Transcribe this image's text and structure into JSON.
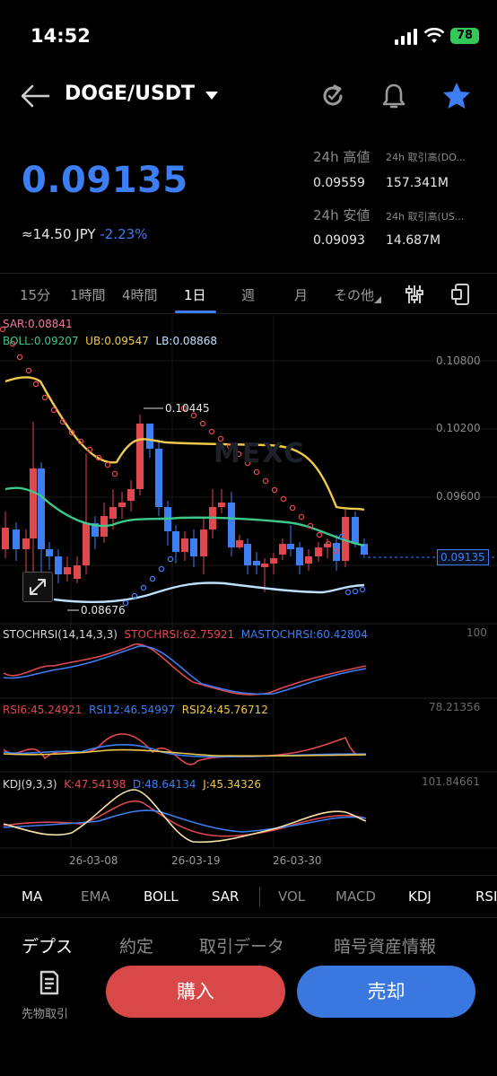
{
  "status_bar": {
    "time": "14:52",
    "battery": "78"
  },
  "header": {
    "pair": "DOGE/USDT"
  },
  "ticker": {
    "price": "0.09135",
    "approx_prefix": "≈14.50 JPY",
    "change": "-2.23%",
    "high_label": "24h 高値",
    "high_value": "0.09559",
    "vol_coin_label": "24h 取引高(DO...",
    "vol_coin_value": "157.341M",
    "low_label": "24h 安値",
    "low_value": "0.09093",
    "vol_usdt_label": "24h 取引高(US...",
    "vol_usdt_value": "14.687M"
  },
  "timeframes": [
    "15分",
    "1時間",
    "4時間",
    "1日",
    "週",
    "月",
    "その他"
  ],
  "timeframe_active": "1日",
  "chart_labels": {
    "sar": "SAR:0.08841",
    "boll": "BOLL:0.09207",
    "ub": "UB:0.09547",
    "lb": "LB:0.08868",
    "price_axis": [
      "0.10800",
      "0.10200",
      "0.09600"
    ],
    "current_price_tag": "0.09135",
    "high_marker": "0.10445",
    "low_marker": "0.08676",
    "stoch_title": "STOCHRSI(14,14,3,3)",
    "stoch_val": "STOCHRSI:62.75921",
    "mastoch_val": "MASTOCHRSI:60.42804",
    "stoch_axis": "100",
    "rsi6": "RSI6:45.24921",
    "rsi12": "RSI12:46.54997",
    "rsi24": "RSI24:45.76712",
    "rsi_axis": "78.21356",
    "kdj_title": "KDJ(9,3,3)",
    "kdj_k": "K:47.54198",
    "kdj_d": "D:48.64134",
    "kdj_j": "J:45.34326",
    "kdj_axis": "101.84661",
    "dates": [
      "26-03-08",
      "26-03-19",
      "26-03-30"
    ],
    "watermark": "MEXC"
  },
  "indicators": [
    "MA",
    "EMA",
    "BOLL",
    "SAR",
    "VOL",
    "MACD",
    "KDJ",
    "RSI"
  ],
  "bottom_tabs": [
    "デプス",
    "約定",
    "取引データ",
    "暗号資産情報"
  ],
  "actions": {
    "futures": "先物取引",
    "buy": "購入",
    "sell": "売却"
  },
  "colors": {
    "up": "#3d7ef2",
    "down": "#e0484f",
    "accent": "#3d7ef2",
    "boll_mid": "#3ec98a",
    "boll_upper": "#f0c94a",
    "boll_lower": "#bfe0ff",
    "sar": "#e0484f"
  }
}
